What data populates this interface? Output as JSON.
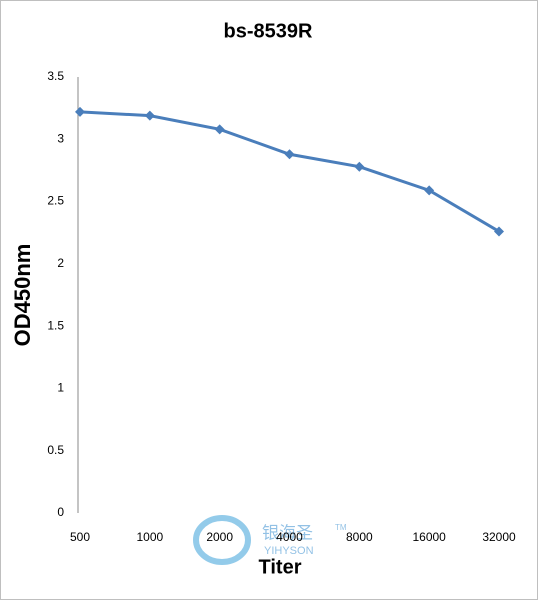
{
  "chart_data": {
    "type": "line",
    "title": "bs-8539R",
    "x_label": "Titer",
    "y_label": "OD450nm",
    "categories": [
      "500",
      "1000",
      "2000",
      "4000",
      "8000",
      "16000",
      "32000"
    ],
    "series": [
      {
        "name": "bs-8539R",
        "color": "#4a7ebb",
        "values": [
          3.22,
          3.19,
          3.08,
          2.88,
          2.78,
          2.59,
          2.26
        ]
      }
    ],
    "ylim": [
      0,
      3.5
    ],
    "yticks": [
      0,
      0.5,
      1,
      1.5,
      2,
      2.5,
      3,
      3.5
    ],
    "grid": false,
    "watermark": {
      "text": "银海圣",
      "subtext": "YIHYSON",
      "mark": "TM"
    }
  }
}
